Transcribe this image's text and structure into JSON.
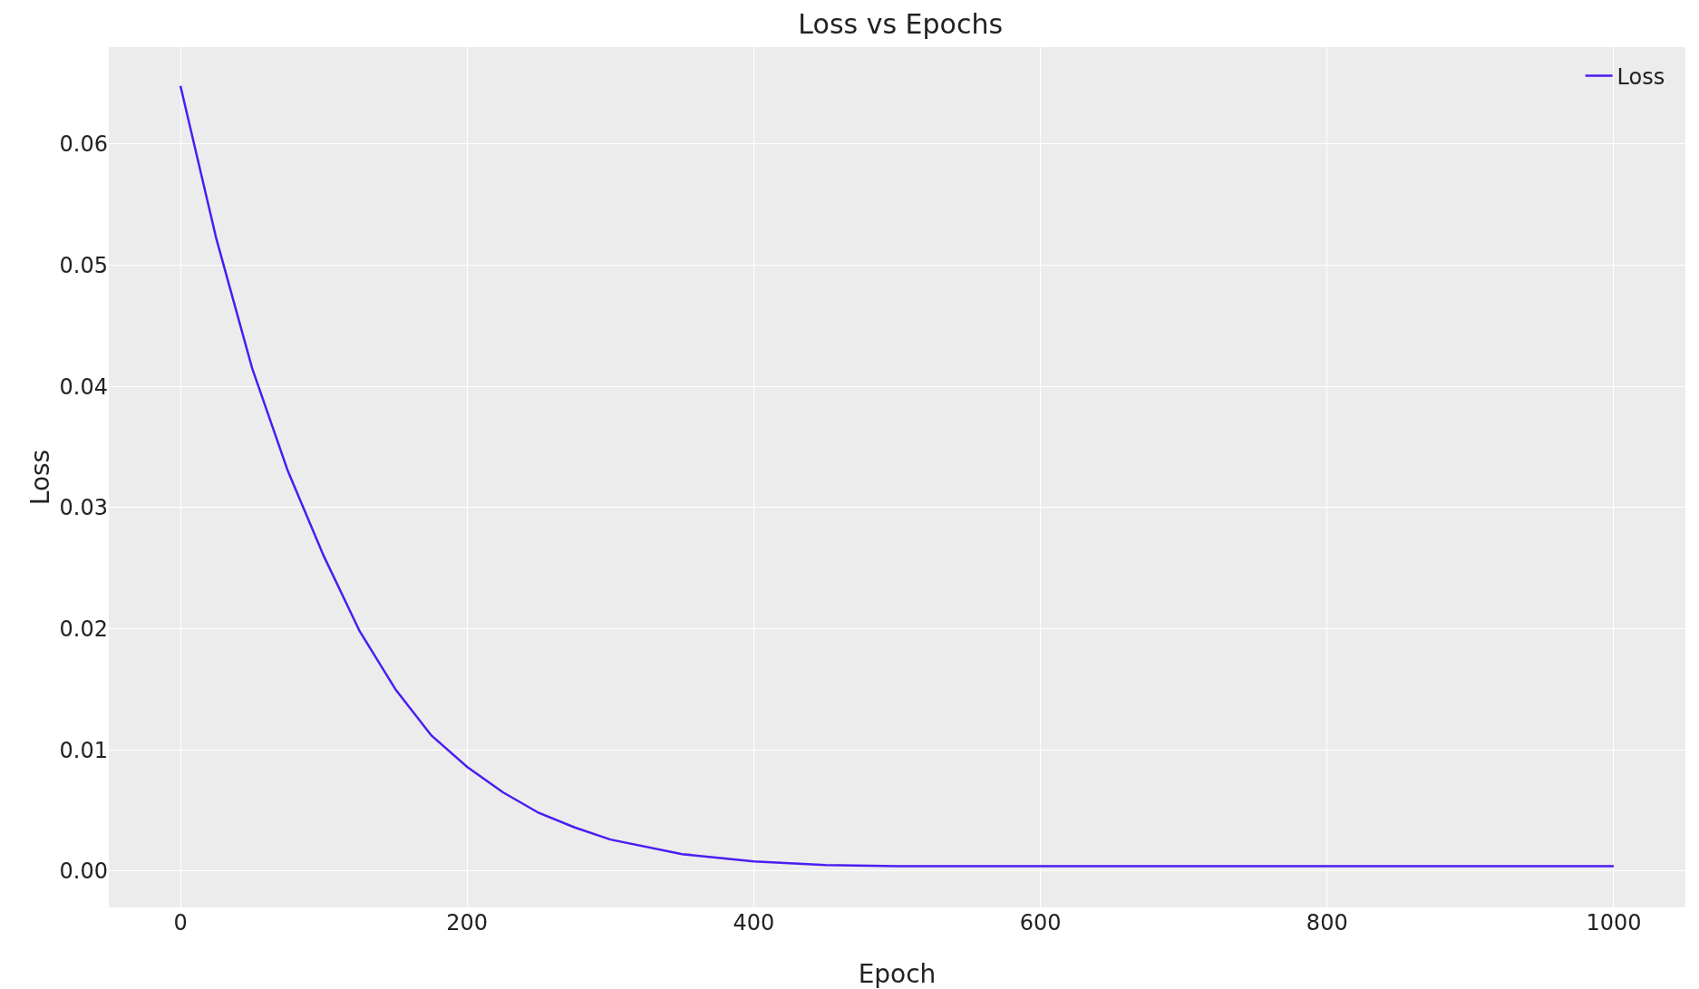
{
  "chart_data": {
    "type": "line",
    "title": "Loss vs Epochs",
    "xlabel": "Epoch",
    "ylabel": "Loss",
    "x": [
      0,
      25,
      50,
      75,
      100,
      125,
      150,
      175,
      200,
      225,
      250,
      275,
      300,
      350,
      400,
      450,
      500,
      600,
      700,
      800,
      900,
      1000
    ],
    "series": [
      {
        "name": "Loss",
        "color": "#4a1df0",
        "values": [
          0.0648,
          0.0522,
          0.0415,
          0.033,
          0.026,
          0.0198,
          0.015,
          0.0112,
          0.0086,
          0.0065,
          0.0048,
          0.0036,
          0.0026,
          0.0014,
          0.0008,
          0.0005,
          0.0004,
          0.0004,
          0.0004,
          0.0004,
          0.0004,
          0.0004
        ]
      }
    ],
    "xlim": [
      -50,
      1050
    ],
    "xticks": [
      0,
      200,
      400,
      600,
      800,
      1000
    ],
    "ylim": [
      -0.003,
      0.068
    ],
    "yticks": [
      {
        "value": 0,
        "label": "0.00"
      },
      {
        "value": 0.01,
        "label": "0.01"
      },
      {
        "value": 0.02,
        "label": "0.02"
      },
      {
        "value": 0.03,
        "label": "0.03"
      },
      {
        "value": 0.04,
        "label": "0.04"
      },
      {
        "value": 0.05,
        "label": "0.05"
      },
      {
        "value": 0.06,
        "label": "0.06"
      }
    ],
    "grid": true,
    "legend": "top right",
    "marker": "none",
    "line_style": "solid"
  }
}
